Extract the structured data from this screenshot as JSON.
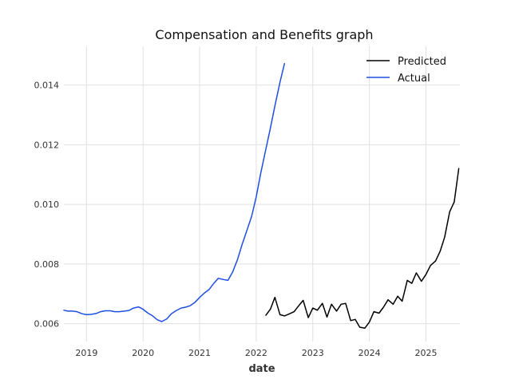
{
  "chart_data": {
    "type": "line",
    "title": "Compensation and Benefits graph",
    "xlabel": "date",
    "ylabel": "",
    "xlim": [
      2018.6,
      2025.6
    ],
    "ylim": [
      0.0054,
      0.0153
    ],
    "x_ticks": [
      {
        "value": 2019,
        "label": "2019"
      },
      {
        "value": 2020,
        "label": "2020"
      },
      {
        "value": 2021,
        "label": "2021"
      },
      {
        "value": 2022,
        "label": "2022"
      },
      {
        "value": 2023,
        "label": "2023"
      },
      {
        "value": 2024,
        "label": "2024"
      },
      {
        "value": 2025,
        "label": "2025"
      }
    ],
    "y_ticks": [
      {
        "value": 0.006,
        "label": "0.006"
      },
      {
        "value": 0.008,
        "label": "0.008"
      },
      {
        "value": 0.01,
        "label": "0.010"
      },
      {
        "value": 0.012,
        "label": "0.012"
      },
      {
        "value": 0.014,
        "label": "0.014"
      }
    ],
    "grid": true,
    "legend": {
      "position": "top-right"
    },
    "series": [
      {
        "name": "Predicted",
        "color": "#000000",
        "x": [
          2022.17,
          2022.25,
          2022.33,
          2022.42,
          2022.5,
          2022.58,
          2022.67,
          2022.75,
          2022.83,
          2022.92,
          2023.0,
          2023.08,
          2023.17,
          2023.25,
          2023.33,
          2023.42,
          2023.5,
          2023.58,
          2023.67,
          2023.75,
          2023.83,
          2023.92,
          2024.0,
          2024.08,
          2024.17,
          2024.25,
          2024.33,
          2024.42,
          2024.5,
          2024.58,
          2024.67,
          2024.75,
          2024.83,
          2024.92,
          2025.0,
          2025.08,
          2025.17,
          2025.25,
          2025.33,
          2025.42,
          2025.5,
          2025.58
        ],
        "y": [
          0.00628,
          0.00648,
          0.00688,
          0.0063,
          0.00626,
          0.00632,
          0.0064,
          0.0066,
          0.00678,
          0.0062,
          0.00652,
          0.00645,
          0.00668,
          0.00622,
          0.00665,
          0.00642,
          0.00665,
          0.00668,
          0.0061,
          0.00614,
          0.00588,
          0.00585,
          0.00605,
          0.0064,
          0.00635,
          0.00655,
          0.0068,
          0.00665,
          0.00692,
          0.00675,
          0.00745,
          0.00735,
          0.0077,
          0.00742,
          0.00765,
          0.00795,
          0.0081,
          0.00842,
          0.0089,
          0.00975,
          0.01008,
          0.0112
        ]
      },
      {
        "name": "Actual",
        "color": "#1f4fe0",
        "x": [
          2018.6,
          2018.67,
          2018.75,
          2018.83,
          2018.92,
          2019.0,
          2019.08,
          2019.17,
          2019.25,
          2019.33,
          2019.42,
          2019.5,
          2019.58,
          2019.67,
          2019.75,
          2019.83,
          2019.92,
          2020.0,
          2020.08,
          2020.17,
          2020.25,
          2020.33,
          2020.42,
          2020.5,
          2020.58,
          2020.67,
          2020.75,
          2020.83,
          2020.92,
          2021.0,
          2021.08,
          2021.17,
          2021.25,
          2021.33,
          2021.42,
          2021.5,
          2021.58,
          2021.67,
          2021.75,
          2021.83,
          2021.92,
          2022.0,
          2022.08,
          2022.17,
          2022.25,
          2022.33,
          2022.42,
          2022.5
        ],
        "y": [
          0.00645,
          0.00642,
          0.00642,
          0.0064,
          0.00633,
          0.0063,
          0.00631,
          0.00634,
          0.0064,
          0.00643,
          0.00643,
          0.0064,
          0.0064,
          0.00642,
          0.00644,
          0.00652,
          0.00656,
          0.00648,
          0.00636,
          0.00626,
          0.00613,
          0.00607,
          0.00616,
          0.00633,
          0.00643,
          0.00652,
          0.00655,
          0.0066,
          0.00672,
          0.00688,
          0.00702,
          0.00715,
          0.00735,
          0.00752,
          0.00748,
          0.00745,
          0.00772,
          0.00815,
          0.00865,
          0.0091,
          0.0096,
          0.01025,
          0.01105,
          0.01185,
          0.01255,
          0.0133,
          0.0141,
          0.01472
        ]
      }
    ]
  }
}
